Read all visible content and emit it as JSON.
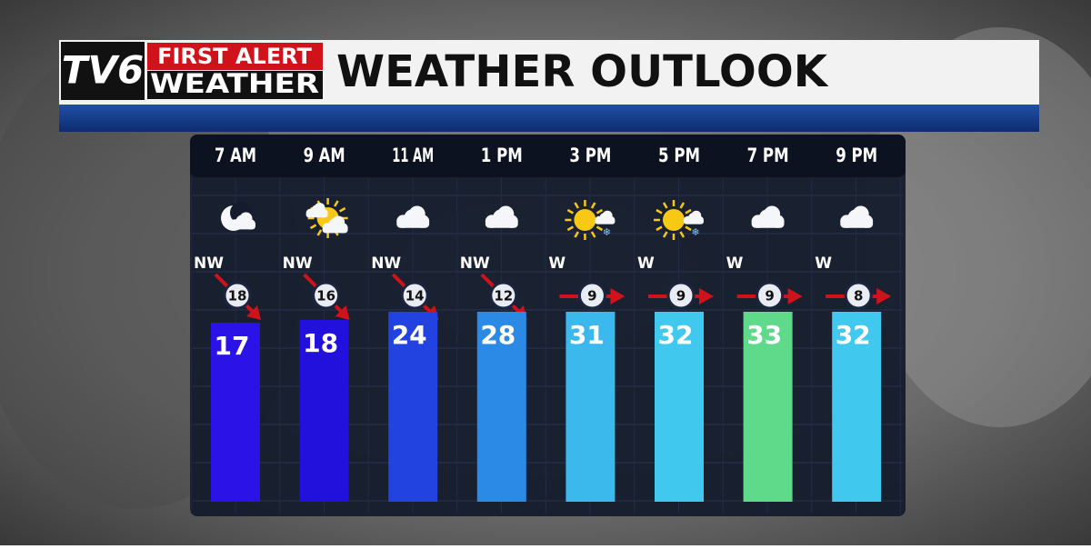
{
  "header": {
    "logo": {
      "channel": "TV6",
      "line1": "FIRST ALERT",
      "line2": "WEATHER"
    },
    "title": "WEATHER OUTLOOK"
  },
  "forecast": [
    {
      "time": "7 AM",
      "wind_dir": "NW",
      "wind_speed": 18,
      "temp": 17,
      "color": "#2b12e6"
    },
    {
      "time": "9 AM",
      "wind_dir": "NW",
      "wind_speed": 16,
      "temp": 18,
      "color": "#2210dc"
    },
    {
      "time": "11 AM",
      "wind_dir": "NW",
      "wind_speed": 14,
      "temp": 24,
      "color": "#2243e0"
    },
    {
      "time": "1 PM",
      "wind_dir": "NW",
      "wind_speed": 12,
      "temp": 28,
      "color": "#2b8ae6"
    },
    {
      "time": "3 PM",
      "wind_dir": "W",
      "wind_speed": 9,
      "temp": 31,
      "color": "#3cb9ec"
    },
    {
      "time": "5 PM",
      "wind_dir": "W",
      "wind_speed": 9,
      "temp": 32,
      "color": "#40c8ef"
    },
    {
      "time": "7 PM",
      "wind_dir": "W",
      "wind_speed": 9,
      "temp": 33,
      "color": "#5fd98a"
    },
    {
      "time": "9 PM",
      "wind_dir": "W",
      "wind_speed": 8,
      "temp": 32,
      "color": "#40c8ef"
    }
  ]
}
